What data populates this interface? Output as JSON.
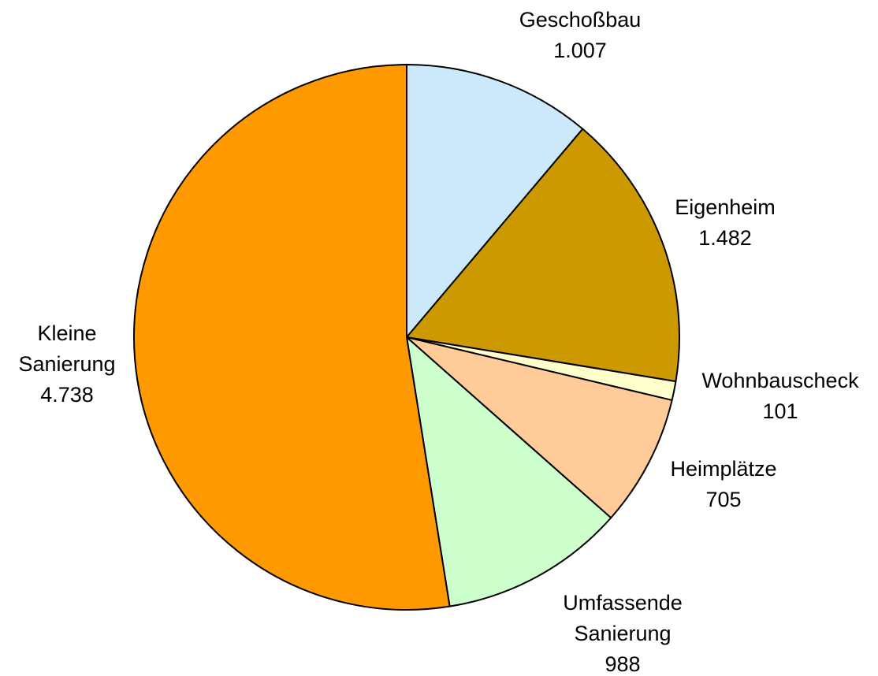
{
  "chart_data": {
    "type": "pie",
    "categories": [
      "Geschoßbau",
      "Eigenheim",
      "Wohnbauscheck",
      "Heimplätze",
      "Umfassende Sanierung",
      "Kleine Sanierung"
    ],
    "values": [
      1007,
      1482,
      101,
      705,
      988,
      4738
    ],
    "value_labels": [
      "1.007",
      "1.482",
      "101",
      "705",
      "988",
      "4.738"
    ],
    "colors": [
      "#cce9fc",
      "#cc9900",
      "#ffffcc",
      "#ffcc99",
      "#ccffcc",
      "#ff9900"
    ],
    "start_angle": 0,
    "direction": "clockwise"
  }
}
